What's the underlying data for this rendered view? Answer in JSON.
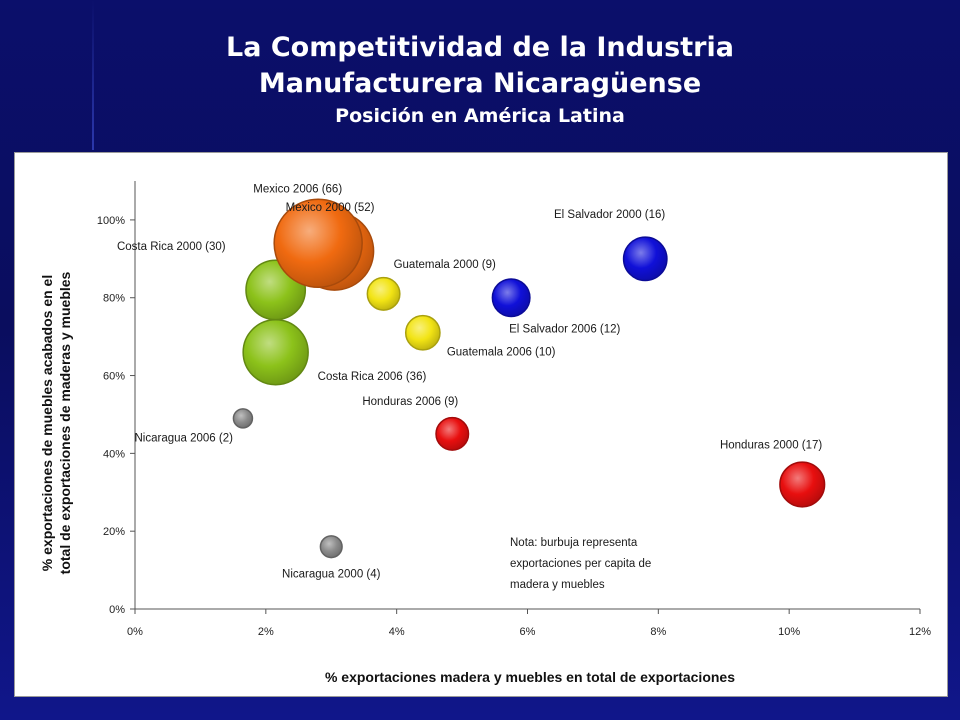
{
  "slide": {
    "title_line1": "La Competitividad de la Industria",
    "title_line2": "Manufacturera Nicaragüense",
    "subtitle": "Posición en América Latina"
  },
  "chart_data": {
    "type": "bubble",
    "xlabel": "% exportaciones madera y muebles en total de exportaciones",
    "ylabel_line1": "% exportaciones de muebles acabados en el",
    "ylabel_line2": "total de exportaciones de maderas y muebles",
    "xlim": [
      0,
      12
    ],
    "ylim": [
      0,
      110
    ],
    "x_ticks": [
      {
        "value": 0,
        "label": "0%"
      },
      {
        "value": 2,
        "label": "2%"
      },
      {
        "value": 4,
        "label": "4%"
      },
      {
        "value": 6,
        "label": "6%"
      },
      {
        "value": 8,
        "label": "8%"
      },
      {
        "value": 10,
        "label": "10%"
      },
      {
        "value": 12,
        "label": "12%"
      }
    ],
    "y_ticks": [
      {
        "value": 0,
        "label": "0%"
      },
      {
        "value": 20,
        "label": "20%"
      },
      {
        "value": 40,
        "label": "40%"
      },
      {
        "value": 60,
        "label": "60%"
      },
      {
        "value": 80,
        "label": "80%"
      },
      {
        "value": 100,
        "label": "100%"
      }
    ],
    "grid": false,
    "note": [
      "Nota: burbuja representa",
      "exportaciones per capita de",
      "madera y muebles"
    ],
    "colors": {
      "Mexico": "#f06a10",
      "Costa Rica": "#8cc21a",
      "Guatemala": "#f2e414",
      "El Salvador": "#1010d8",
      "Honduras": "#e80f0f",
      "Nicaragua": "#8c8c8c"
    },
    "points": [
      {
        "label": "Mexico 2000 (52)",
        "country": "Mexico",
        "year": 2000,
        "size": 52,
        "x": 3.05,
        "y": 92
      },
      {
        "label": "Costa Rica 2000 (30)",
        "country": "Costa Rica",
        "year": 2000,
        "size": 30,
        "x": 2.15,
        "y": 82
      },
      {
        "label": "Costa Rica 2006 (36)",
        "country": "Costa Rica",
        "year": 2006,
        "size": 36,
        "x": 2.15,
        "y": 66
      },
      {
        "label": "Mexico 2006 (66)",
        "country": "Mexico",
        "year": 2006,
        "size": 66,
        "x": 2.8,
        "y": 94
      },
      {
        "label": "Guatemala 2000 (9)",
        "country": "Guatemala",
        "year": 2000,
        "size": 9,
        "x": 3.8,
        "y": 81
      },
      {
        "label": "Guatemala 2006 (10)",
        "country": "Guatemala",
        "year": 2006,
        "size": 10,
        "x": 4.4,
        "y": 71
      },
      {
        "label": "El Salvador 2000 (16)",
        "country": "El Salvador",
        "year": 2000,
        "size": 16,
        "x": 7.8,
        "y": 90
      },
      {
        "label": "El Salvador 2006 (12)",
        "country": "El Salvador",
        "year": 2006,
        "size": 12,
        "x": 5.75,
        "y": 80
      },
      {
        "label": "Honduras 2006 (9)",
        "country": "Honduras",
        "year": 2006,
        "size": 9,
        "x": 4.85,
        "y": 45
      },
      {
        "label": "Honduras 2000 (17)",
        "country": "Honduras",
        "year": 2000,
        "size": 17,
        "x": 10.2,
        "y": 32
      },
      {
        "label": "Nicaragua 2006 (2)",
        "country": "Nicaragua",
        "year": 2006,
        "size": 2,
        "x": 1.65,
        "y": 49
      },
      {
        "label": "Nicaragua 2000 (4)",
        "country": "Nicaragua",
        "year": 2000,
        "size": 4,
        "x": 3.0,
        "y": 16
      }
    ]
  }
}
